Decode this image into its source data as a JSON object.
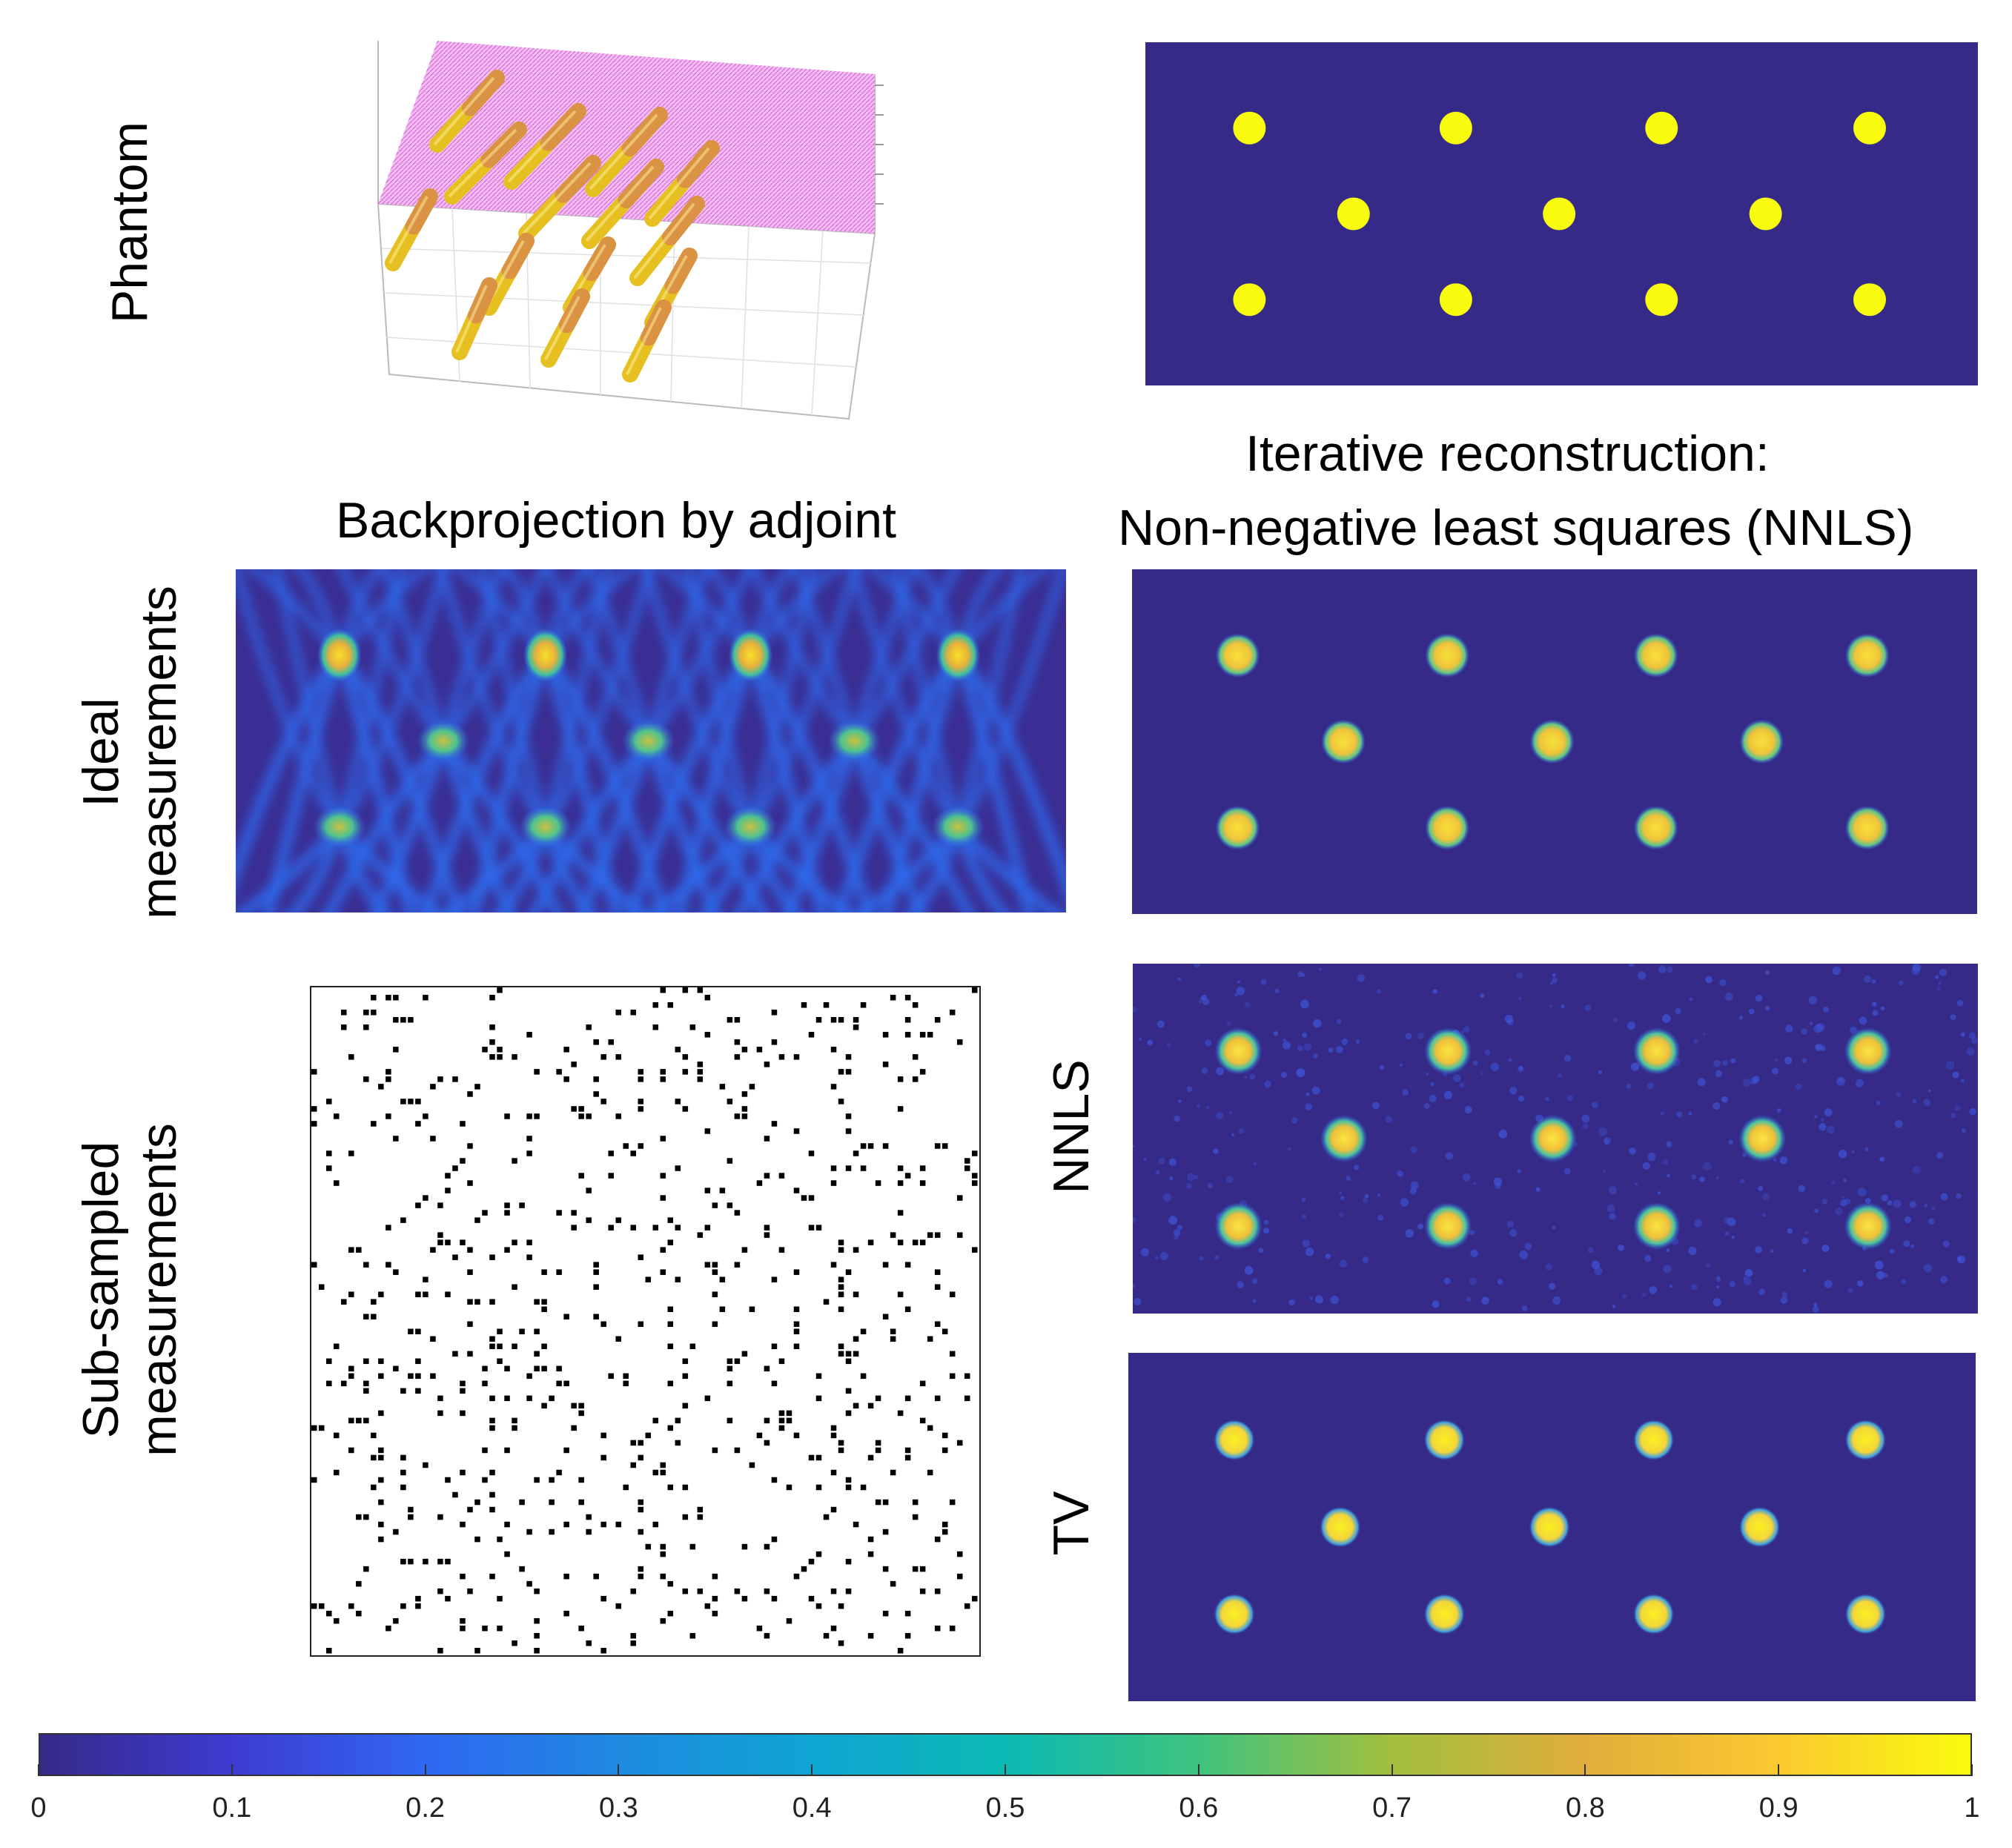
{
  "labels": {
    "row_phantom": "Phantom",
    "row_ideal_line1": "Ideal",
    "row_ideal_line2": "measurements",
    "row_sub_line1": "Sub-sampled",
    "row_sub_line2": "measurements",
    "col_backprojection": "Backprojection by adjoint",
    "col_iterative_line1": "Iterative reconstruction:",
    "col_iterative_line2": "Non-negative least squares (NNLS)",
    "method_nnls": "NNLS",
    "method_tv": "TV"
  },
  "colorbar": {
    "ticks": [
      "0",
      "0.1",
      "0.2",
      "0.3",
      "0.4",
      "0.5",
      "0.6",
      "0.7",
      "0.8",
      "0.9",
      "1"
    ],
    "min": 0,
    "max": 1,
    "colormap": "parula"
  },
  "colors": {
    "background_dark": "#352a87",
    "inclusion": "#f9fb0e",
    "reconstruction": "#f4d03f",
    "phantom_plane": "#e88ee8",
    "rod_top": "#d98a4a",
    "rod_bottom": "#e6c020"
  },
  "inclusion_layout": {
    "rows": 3,
    "columns": [
      4,
      3,
      4
    ]
  }
}
